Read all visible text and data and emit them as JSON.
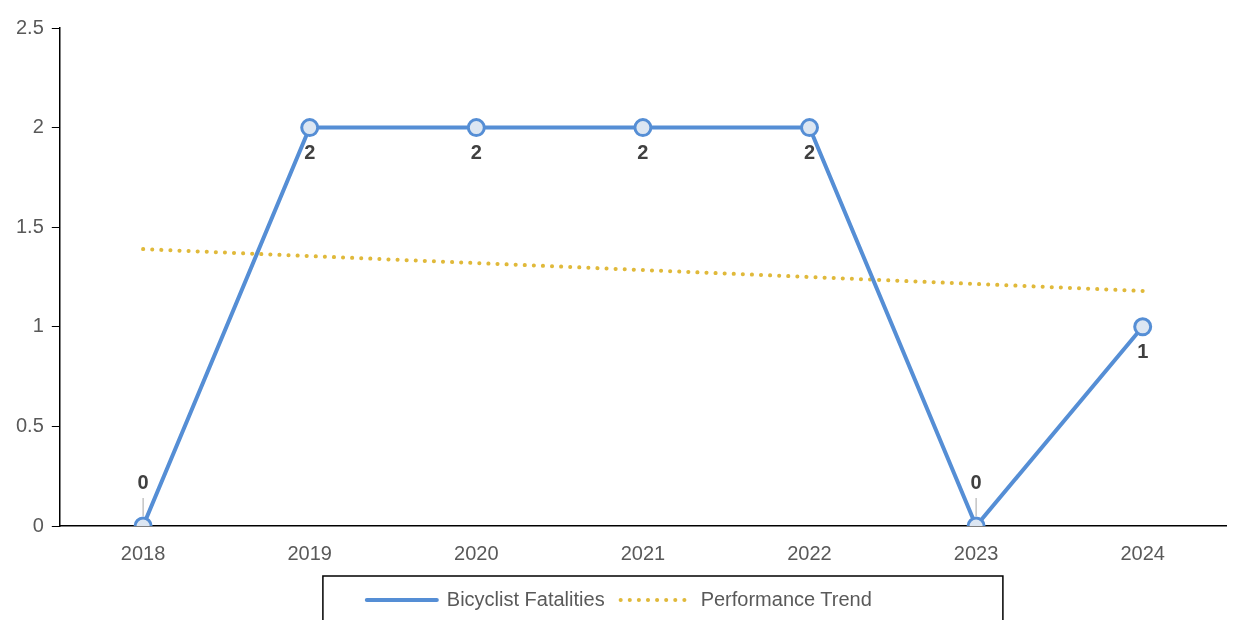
{
  "chart_data": {
    "type": "line",
    "categories": [
      "2018",
      "2019",
      "2020",
      "2021",
      "2022",
      "2023",
      "2024"
    ],
    "series": [
      {
        "name": "Bicyclist Fatalities",
        "color": "#558ed5",
        "values": [
          0,
          2,
          2,
          2,
          2,
          0,
          1
        ],
        "marker": "circle",
        "line_style": "solid",
        "data_labels": true
      },
      {
        "name": "Performance Trend",
        "color": "#e0b93a",
        "values": [
          1.39,
          null,
          null,
          null,
          null,
          null,
          1.18
        ],
        "marker": "none",
        "line_style": "dotted"
      }
    ],
    "ylim": [
      0,
      2.5
    ],
    "yticks": [
      0,
      0.5,
      1,
      1.5,
      2,
      2.5
    ],
    "grid": false,
    "legend": "bottom"
  }
}
